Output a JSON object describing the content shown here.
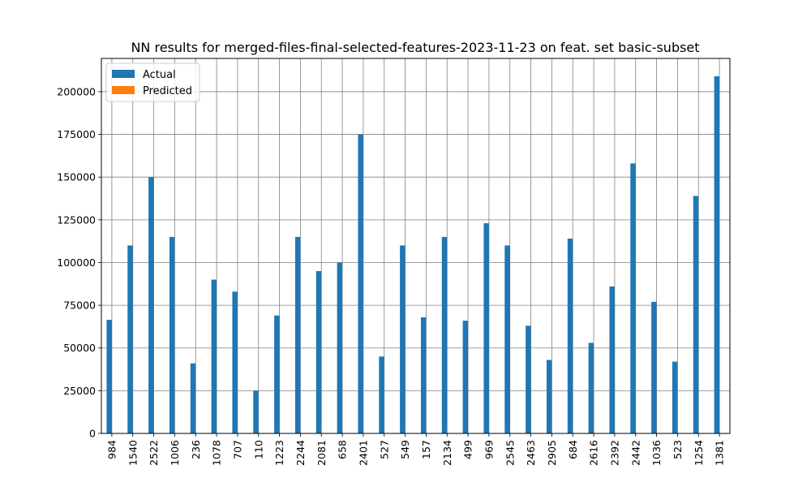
{
  "chart_data": {
    "type": "bar",
    "title": "NN results for merged-files-final-selected-features-2023-11-23 on feat. set basic-subset",
    "xlabel": "",
    "ylabel": "",
    "categories": [
      "984",
      "1540",
      "2522",
      "1006",
      "236",
      "1078",
      "707",
      "110",
      "1223",
      "2244",
      "2081",
      "658",
      "2401",
      "527",
      "549",
      "157",
      "2134",
      "499",
      "969",
      "2545",
      "2463",
      "2905",
      "684",
      "2616",
      "2392",
      "2442",
      "1036",
      "523",
      "1254",
      "1381"
    ],
    "series": [
      {
        "name": "Actual",
        "color": "#1f77b4",
        "values": [
          66500,
          110000,
          150000,
          115000,
          41000,
          90000,
          83000,
          25000,
          69000,
          115000,
          95000,
          100000,
          175000,
          45000,
          110000,
          68000,
          115000,
          66000,
          123000,
          110000,
          63000,
          43000,
          114000,
          53000,
          86000,
          158000,
          77000,
          42000,
          139000,
          209000
        ]
      },
      {
        "name": "Predicted",
        "color": "#ff7f0e",
        "values": [
          0,
          0,
          0,
          0,
          0,
          0,
          0,
          0,
          0,
          0,
          0,
          0,
          0,
          0,
          0,
          0,
          0,
          0,
          0,
          0,
          0,
          0,
          0,
          0,
          0,
          0,
          0,
          0,
          0,
          0
        ]
      }
    ],
    "ylim": [
      0,
      219450
    ],
    "yticks": [
      0,
      25000,
      50000,
      75000,
      100000,
      125000,
      150000,
      175000,
      200000
    ],
    "grid": true,
    "legend_position": "top-left"
  }
}
